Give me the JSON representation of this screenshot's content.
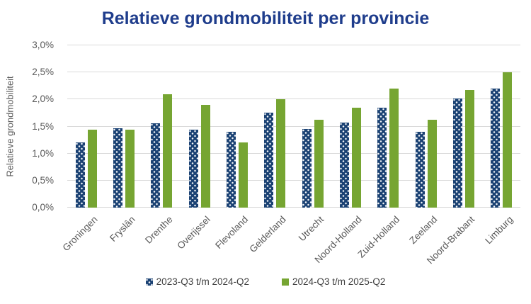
{
  "title": "Relatieve grondmobiliteit per provincie",
  "colors": {
    "title": "#1F3D8C",
    "axis_text": "#595959",
    "legend_text": "#404040",
    "gridline": "#D9D9D9",
    "series1": "#1A4173",
    "series2": "#76A532",
    "background": "#FFFFFF"
  },
  "chart_data": {
    "type": "bar",
    "title": "Relatieve grondmobiliteit per provincie",
    "xlabel": "",
    "ylabel": "Relatieve grondmobiliteit",
    "ylim": [
      0,
      3.0
    ],
    "y_ticks": [
      0.0,
      0.5,
      1.0,
      1.5,
      2.0,
      2.5,
      3.0
    ],
    "y_tick_labels": [
      "0,0%",
      "0,5%",
      "1,0%",
      "1,5%",
      "2,0%",
      "2,5%",
      "3,0%"
    ],
    "grid": true,
    "legend_position": "bottom",
    "categories": [
      "Groningen",
      "Fryslân",
      "Drenthe",
      "Overijssel",
      "Flevoland",
      "Gelderland",
      "Utrecht",
      "Noord-Holland",
      "Zuid-Holland",
      "Zeeland",
      "Noord-Brabant",
      "Limburg"
    ],
    "series": [
      {
        "name": "2023-Q3 t/m 2024-Q2",
        "color": "#1A4173",
        "pattern": "dots",
        "values": [
          1.2,
          1.47,
          1.56,
          1.44,
          1.4,
          1.75,
          1.45,
          1.57,
          1.85,
          1.4,
          2.02,
          2.2
        ]
      },
      {
        "name": "2024-Q3 t/m 2025-Q2",
        "color": "#76A532",
        "pattern": "solid",
        "values": [
          1.44,
          1.44,
          2.1,
          1.9,
          1.2,
          2.0,
          1.62,
          1.85,
          2.2,
          1.62,
          2.17,
          2.5
        ]
      }
    ]
  }
}
